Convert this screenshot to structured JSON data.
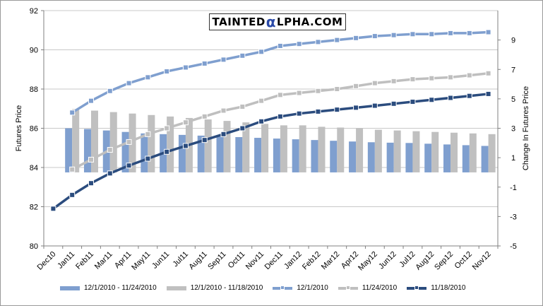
{
  "chart_data": {
    "type": "bar+line",
    "categories": [
      "Dec10",
      "Jan11",
      "Feb11",
      "Mar11",
      "Apr11",
      "May11",
      "Jun11",
      "Jul11",
      "Aug11",
      "Sep11",
      "Oct11",
      "Nov11",
      "Dec11",
      "Jan12",
      "Feb12",
      "Mar12",
      "Apr12",
      "May12",
      "Jun12",
      "Jul12",
      "Aug12",
      "Sep12",
      "Oct12",
      "Nov12"
    ],
    "ylabel": "Futures Price",
    "y2label": "Change In Futures Price",
    "ylim": [
      80,
      92
    ],
    "yticks": [
      80,
      82,
      84,
      86,
      88,
      90,
      92
    ],
    "y2lim": [
      -5,
      11
    ],
    "y2ticks": [
      -5,
      -3,
      -1,
      1,
      3,
      5,
      7,
      9
    ],
    "grid": true,
    "legend_position": "bottom",
    "bar_series": [
      {
        "name": "12/1/2010 - 11/24/2010",
        "color": "#7f9fcf",
        "axis": "right",
        "values": [
          null,
          3.0,
          2.95,
          2.85,
          2.75,
          2.65,
          2.6,
          2.55,
          2.5,
          2.45,
          2.4,
          2.35,
          2.3,
          2.25,
          2.2,
          2.15,
          2.1,
          2.05,
          2.02,
          2.0,
          1.95,
          1.9,
          1.85,
          1.8
        ]
      },
      {
        "name": "12/1/2010 - 11/18/2010",
        "color": "#c0c0c0",
        "axis": "right",
        "values": [
          null,
          4.3,
          4.2,
          4.1,
          4.0,
          3.9,
          3.8,
          3.7,
          3.6,
          3.5,
          3.4,
          3.3,
          3.2,
          3.2,
          3.1,
          3.05,
          3.0,
          2.9,
          2.85,
          2.8,
          2.75,
          2.7,
          2.65,
          2.6
        ]
      }
    ],
    "line_series": [
      {
        "name": "12/1/2010",
        "color": "#7f9fcf",
        "axis": "left",
        "values": [
          null,
          86.8,
          87.4,
          87.9,
          88.3,
          88.6,
          88.9,
          89.1,
          89.3,
          89.5,
          89.7,
          89.9,
          90.2,
          90.3,
          90.4,
          90.5,
          90.6,
          90.7,
          90.75,
          90.8,
          90.8,
          90.85,
          90.85,
          90.9
        ]
      },
      {
        "name": "11/24/2010",
        "color": "#bfbfbf",
        "axis": "left",
        "values": [
          null,
          83.9,
          84.4,
          84.9,
          85.3,
          85.7,
          86.0,
          86.3,
          86.6,
          86.9,
          87.1,
          87.4,
          87.7,
          87.8,
          87.9,
          88.0,
          88.15,
          88.3,
          88.4,
          88.5,
          88.55,
          88.6,
          88.7,
          88.8
        ]
      },
      {
        "name": "11/18/2010",
        "color": "#2b4c7e",
        "axis": "left",
        "values": [
          81.9,
          82.6,
          83.2,
          83.7,
          84.1,
          84.45,
          84.8,
          85.1,
          85.4,
          85.7,
          86.0,
          86.35,
          86.6,
          86.75,
          86.85,
          86.95,
          87.05,
          87.15,
          87.25,
          87.35,
          87.45,
          87.55,
          87.65,
          87.75
        ]
      }
    ]
  },
  "brand": {
    "pre": "TAINTED",
    "alpha": "α",
    "post": "LPHA.COM"
  }
}
